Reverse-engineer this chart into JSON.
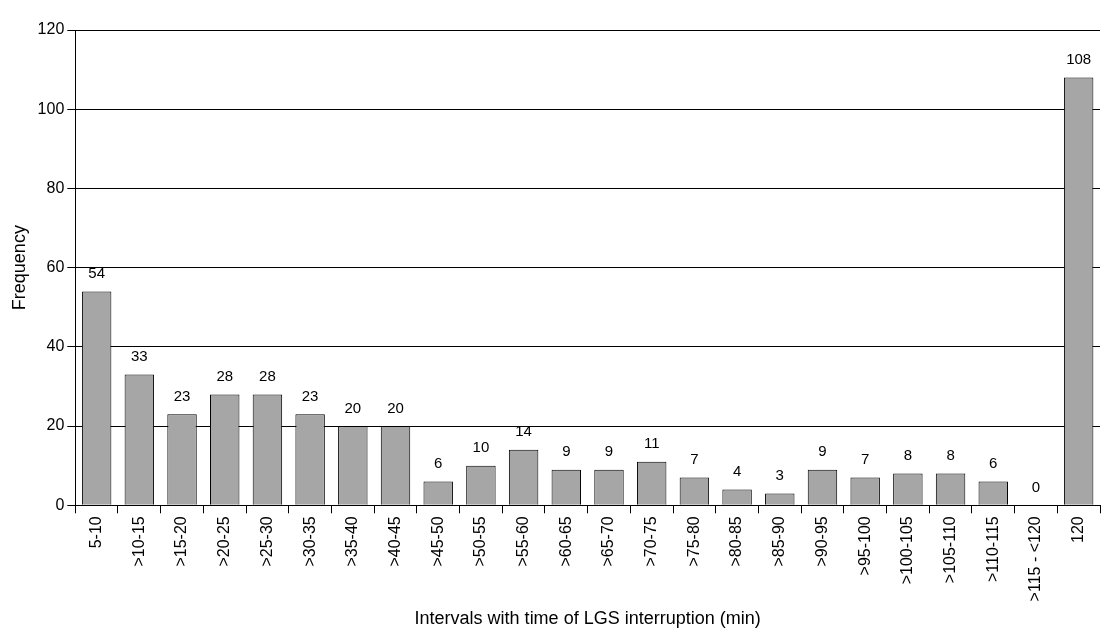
{
  "chart_data": {
    "type": "bar",
    "xlabel": "Intervals with time of LGS interruption (min)",
    "ylabel": "Frequency",
    "categories": [
      "5-10",
      ">10-15",
      ">15-20",
      ">20-25",
      ">25-30",
      ">30-35",
      ">35-40",
      ">40-45",
      ">45-50",
      ">50-55",
      ">55-60",
      ">60-65",
      ">65-70",
      ">70-75",
      ">75-80",
      ">80-85",
      ">85-90",
      ">90-95",
      ">95-100",
      ">100-105",
      ">105-110",
      ">110-115",
      ">115 - <120",
      "120"
    ],
    "values": [
      54,
      33,
      23,
      28,
      28,
      23,
      20,
      20,
      6,
      10,
      14,
      9,
      9,
      11,
      7,
      4,
      3,
      9,
      7,
      8,
      8,
      6,
      0,
      108
    ],
    "color": "#a6a6a6",
    "ylim": [
      0,
      120
    ],
    "yticks": [
      0,
      20,
      40,
      60,
      80,
      100,
      120
    ],
    "grid": "y",
    "data_labels": true
  }
}
